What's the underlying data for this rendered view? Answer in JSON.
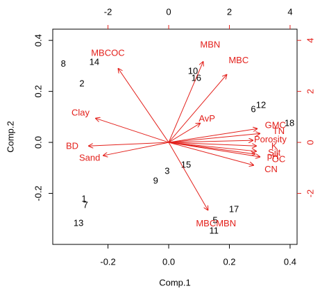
{
  "chart_data": {
    "type": "biplot",
    "xlabel": "Comp.1",
    "ylabel": "Comp.2",
    "xlim": [
      -0.382,
      0.423
    ],
    "ylim": [
      -0.4,
      0.444
    ],
    "xticks": [
      -0.2,
      {
        "value": 0,
        "label": "0.0"
      },
      0.2,
      0.4
    ],
    "yticks": [
      -0.2,
      {
        "value": 0,
        "label": "0.0"
      },
      0.2,
      0.4
    ],
    "x2lim": [
      -3.82,
      4.23
    ],
    "y2lim": [
      -4.0,
      4.44
    ],
    "x2ticks": [
      -2,
      0,
      2,
      4
    ],
    "y2ticks": [
      -2,
      0,
      2,
      4
    ],
    "points": {
      "color": "#000000",
      "labels": [
        "8",
        "14",
        "2",
        "10",
        "16",
        "6",
        "12",
        "18",
        "15",
        "3",
        "9",
        "1",
        "7",
        "13",
        "5",
        "17",
        "11"
      ],
      "x": [
        -0.347,
        -0.245,
        -0.286,
        0.08,
        0.091,
        0.279,
        0.304,
        0.398,
        0.057,
        -0.005,
        -0.043,
        -0.279,
        -0.274,
        -0.297,
        0.153,
        0.215,
        0.149
      ],
      "y": [
        0.307,
        0.313,
        0.229,
        0.278,
        0.25,
        0.128,
        0.144,
        0.073,
        -0.09,
        -0.114,
        -0.152,
        -0.223,
        -0.248,
        -0.318,
        -0.307,
        -0.264,
        -0.348
      ]
    },
    "loadings": {
      "color": "#e3201b",
      "labels": [
        "MBCOC",
        "MBN",
        "MBC",
        "Clay",
        "BD",
        "Sand",
        "AvP",
        "GMC",
        "TN",
        "Porosity",
        "K",
        "Silt",
        "pH",
        "OC",
        "CN",
        "MBCMBN"
      ],
      "x": [
        -1.67,
        1.14,
        1.92,
        -2.42,
        -2.65,
        -2.17,
        1.05,
        2.93,
        3.02,
        2.79,
        2.9,
        2.9,
        2.86,
        3.02,
        2.81,
        1.3
      ],
      "y": [
        2.91,
        3.18,
        2.67,
        0.95,
        -0.14,
        -0.52,
        0.76,
        0.54,
        0.35,
        0.08,
        -0.14,
        -0.35,
        -0.46,
        -0.57,
        -0.9,
        -2.67
      ]
    }
  }
}
